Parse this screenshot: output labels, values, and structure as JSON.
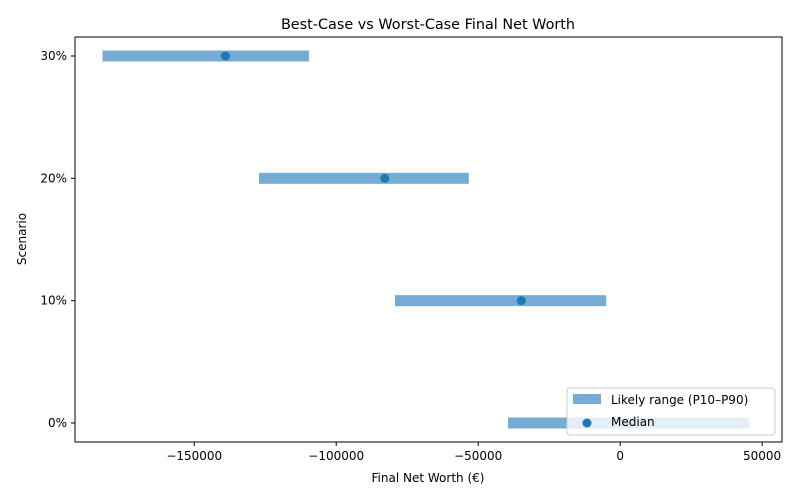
{
  "chart_data": {
    "type": "range-bar",
    "title": "Best-Case vs Worst-Case Final Net Worth",
    "xlabel": "Final Net Worth (€)",
    "ylabel": "Scenario",
    "xlim": [
      -192000,
      57000
    ],
    "xticks": [
      -150000,
      -100000,
      -50000,
      0,
      50000
    ],
    "xtick_labels": [
      "−150000",
      "−100000",
      "−50000",
      "0",
      "50000"
    ],
    "categories": [
      "0%",
      "10%",
      "20%",
      "30%"
    ],
    "series": [
      {
        "name": "Likely range (P10–P90)",
        "p10": [
          -39500,
          -79300,
          -127200,
          -182300
        ],
        "p90": [
          45400,
          -4900,
          -53300,
          -109600
        ]
      },
      {
        "name": "Median",
        "values": [
          3000,
          -34800,
          -82900,
          -139000
        ]
      }
    ],
    "colors": {
      "range": "#76acd3",
      "median": "#1f77b4",
      "axes": "#000000"
    },
    "grid": false,
    "legend_position": "lower right"
  },
  "legend": {
    "items": [
      {
        "label": "Likely range (P10–P90)",
        "icon": "range-bar-swatch"
      },
      {
        "label": "Median",
        "icon": "median-dot"
      }
    ]
  }
}
